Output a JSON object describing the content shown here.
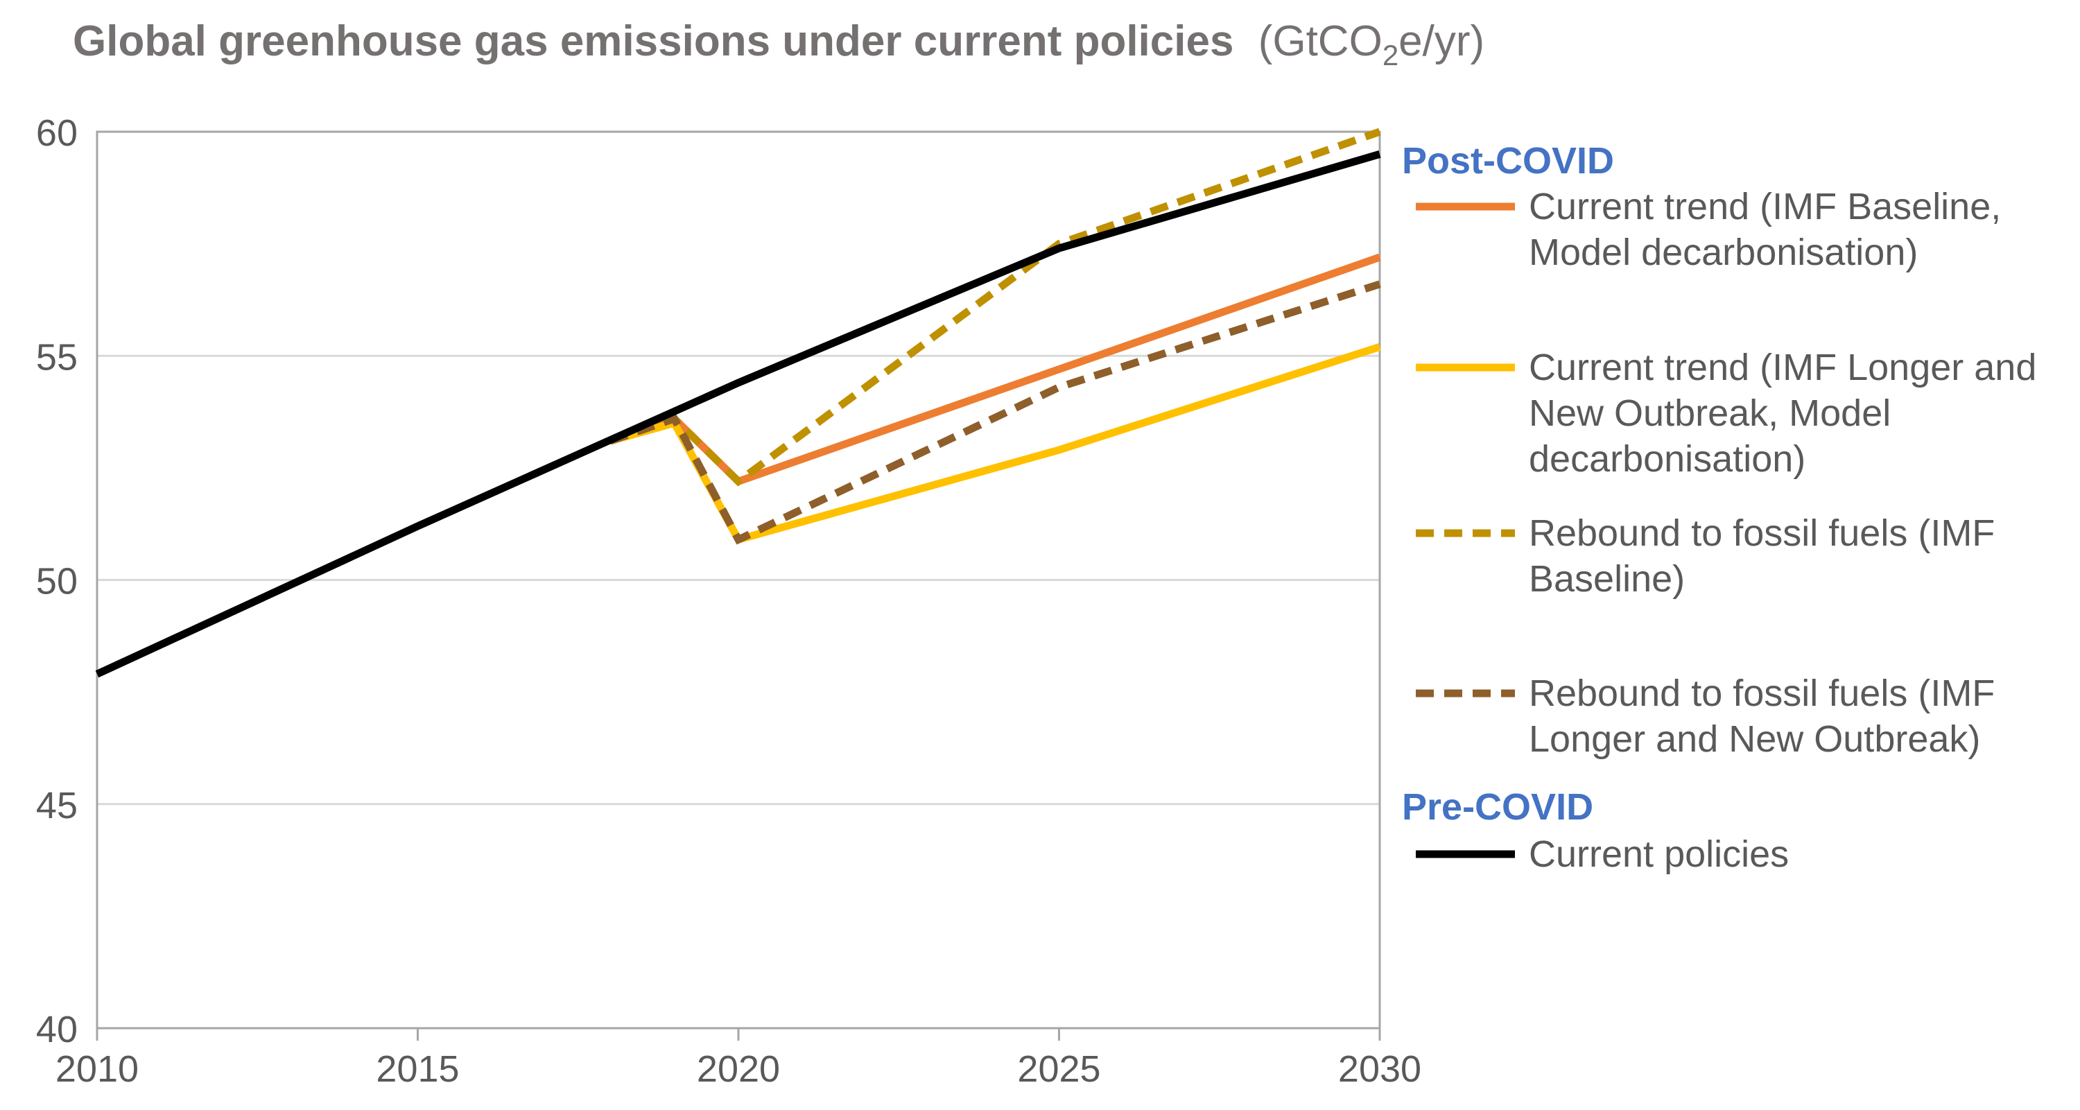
{
  "title": {
    "bold": "Global greenhouse gas emissions under current policies",
    "unit_pre": "(GtCO",
    "unit_sub": "2",
    "unit_post": "e/yr)"
  },
  "chart_data": {
    "type": "line",
    "title": "Global greenhouse gas emissions under current policies (GtCO2e/yr)",
    "xlabel": "",
    "ylabel": "",
    "xlim": [
      2010,
      2030
    ],
    "ylim": [
      40,
      60
    ],
    "x_ticks": [
      2010,
      2015,
      2020,
      2025,
      2030
    ],
    "y_ticks": [
      40,
      45,
      50,
      55,
      60
    ],
    "grid": "horizontal",
    "legend_position": "right",
    "legend_groups": [
      {
        "heading": "Post-COVID",
        "heading_color": "#4472C4",
        "entries": [
          0,
          1,
          2,
          3
        ]
      },
      {
        "heading": "Pre-COVID",
        "heading_color": "#4472C4",
        "entries": [
          4
        ]
      }
    ],
    "series": [
      {
        "name": "Current trend (IMF Baseline, Model decarbonisation)",
        "legend_lines": [
          "Current trend (IMF Baseline,",
          "Model decarbonisation)"
        ],
        "color": "#ED7D31",
        "dash": false,
        "points": [
          [
            2018,
            53.1
          ],
          [
            2019,
            53.6
          ],
          [
            2020,
            52.2
          ],
          [
            2025,
            54.7
          ],
          [
            2030,
            57.2
          ]
        ]
      },
      {
        "name": "Current trend (IMF Longer and New Outbreak, Model decarbonisation)",
        "legend_lines": [
          "Current trend (IMF Longer and",
          "New Outbreak, Model",
          "decarbonisation)"
        ],
        "color": "#FFC000",
        "dash": false,
        "points": [
          [
            2018,
            53.1
          ],
          [
            2019,
            53.5
          ],
          [
            2020,
            50.9
          ],
          [
            2025,
            52.9
          ],
          [
            2030,
            55.2
          ]
        ]
      },
      {
        "name": "Rebound to fossil fuels (IMF Baseline)",
        "legend_lines": [
          "Rebound to fossil fuels (IMF",
          "Baseline)"
        ],
        "color": "#BF9000",
        "dash": true,
        "points": [
          [
            2018,
            53.1
          ],
          [
            2019,
            53.6
          ],
          [
            2020,
            52.2
          ],
          [
            2025,
            57.5
          ],
          [
            2030,
            60.0
          ]
        ]
      },
      {
        "name": "Rebound to fossil fuels (IMF Longer and New Outbreak)",
        "legend_lines": [
          "Rebound to fossil fuels (IMF",
          "Longer and New Outbreak)"
        ],
        "color": "#8E5E2B",
        "dash": true,
        "points": [
          [
            2018,
            53.1
          ],
          [
            2019,
            53.6
          ],
          [
            2020,
            50.9
          ],
          [
            2025,
            54.3
          ],
          [
            2030,
            56.6
          ]
        ]
      },
      {
        "name": "Current policies",
        "legend_lines": [
          "Current policies"
        ],
        "color": "#000000",
        "dash": false,
        "points": [
          [
            2010,
            47.9
          ],
          [
            2015,
            51.2
          ],
          [
            2020,
            54.4
          ],
          [
            2025,
            57.4
          ],
          [
            2030,
            59.5
          ]
        ]
      }
    ]
  }
}
